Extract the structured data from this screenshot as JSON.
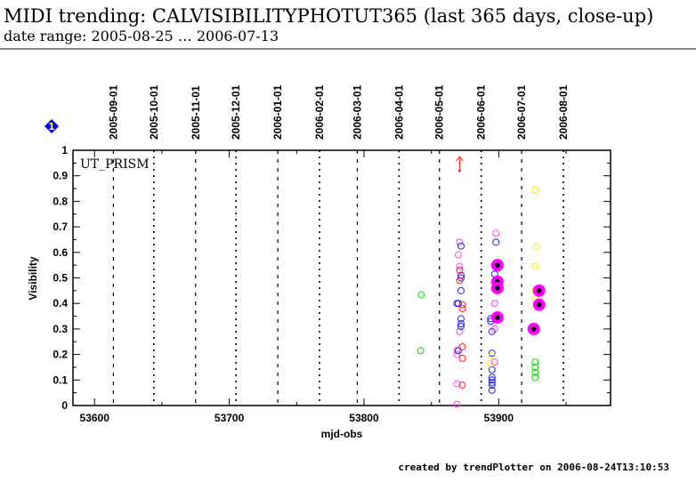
{
  "header": {
    "title": "MIDI trending: CALVISIBILITYPHOTUT365 (last 365 days, close-up)",
    "subtitle": "date range: 2005-08-25 … 2006-07-13"
  },
  "badge": {
    "label": "1",
    "color": "#0000ff"
  },
  "footer": "created by trendPlotter on 2006-08-24T13:10:53",
  "chart_data": {
    "type": "scatter",
    "title": "MIDI trending: CALVISIBILITYPHOTUT365 (last 365 days, close-up)",
    "annotation": "UT_PRISM",
    "xlabel": "mjd-obs",
    "ylabel": "Visibility",
    "xlim": [
      53584,
      53983
    ],
    "ylim": [
      0,
      1
    ],
    "xticks": [
      53600,
      53700,
      53800,
      53900
    ],
    "yticks": [
      0,
      0.1,
      0.2,
      0.3,
      0.4,
      0.5,
      0.6,
      0.7,
      0.8,
      0.9,
      1
    ],
    "ytick_labels": [
      "0",
      "0.1",
      "0.2",
      "0.3",
      "0.4",
      "0.5",
      "0.6",
      "0.7",
      "0.8",
      "0.9",
      "1"
    ],
    "date_markers": [
      {
        "label": "2005-09-01",
        "mjd": 53614
      },
      {
        "label": "2005-10-01",
        "mjd": 53644
      },
      {
        "label": "2005-11-01",
        "mjd": 53675
      },
      {
        "label": "2005-12-01",
        "mjd": 53705
      },
      {
        "label": "2006-01-01",
        "mjd": 53736
      },
      {
        "label": "2006-02-01",
        "mjd": 53767
      },
      {
        "label": "2006-03-01",
        "mjd": 53795
      },
      {
        "label": "2006-04-01",
        "mjd": 53826
      },
      {
        "label": "2006-05-01",
        "mjd": 53856
      },
      {
        "label": "2006-06-01",
        "mjd": 53887
      },
      {
        "label": "2006-07-01",
        "mjd": 53917
      },
      {
        "label": "2006-08-01",
        "mjd": 53948
      }
    ],
    "series": [
      {
        "name": "green",
        "color": "#00dd00",
        "points": [
          [
            53842.5,
            0.434
          ],
          [
            53842,
            0.215
          ],
          [
            53927,
            0.17
          ],
          [
            53927,
            0.15
          ],
          [
            53927,
            0.13
          ],
          [
            53927,
            0.11
          ]
        ]
      },
      {
        "name": "magenta",
        "color": "#ff44ff",
        "points": [
          [
            53871,
            0.64
          ],
          [
            53870,
            0.59
          ],
          [
            53871,
            0.545
          ],
          [
            53871,
            0.29
          ],
          [
            53869,
            0.215
          ],
          [
            53869,
            0.2
          ],
          [
            53869,
            0.085
          ],
          [
            53869,
            0.005
          ],
          [
            53898,
            0.675
          ],
          [
            53897,
            0.4
          ],
          [
            53897,
            0.3
          ],
          [
            53897,
            0.17
          ]
        ]
      },
      {
        "name": "blue",
        "color": "#2222ff",
        "points": [
          [
            53872,
            0.625
          ],
          [
            53872,
            0.51
          ],
          [
            53872,
            0.5
          ],
          [
            53872,
            0.45
          ],
          [
            53869,
            0.4
          ],
          [
            53870,
            0.4
          ],
          [
            53872,
            0.34
          ],
          [
            53872,
            0.32
          ],
          [
            53872,
            0.31
          ],
          [
            53870,
            0.215
          ],
          [
            53898,
            0.64
          ],
          [
            53897,
            0.515
          ],
          [
            53894,
            0.34
          ],
          [
            53894,
            0.33
          ],
          [
            53895,
            0.29
          ],
          [
            53895,
            0.205
          ],
          [
            53895,
            0.14
          ],
          [
            53895,
            0.11
          ],
          [
            53895,
            0.1
          ],
          [
            53895,
            0.09
          ],
          [
            53895,
            0.08
          ],
          [
            53895,
            0.06
          ]
        ]
      },
      {
        "name": "red",
        "color": "#ff2222",
        "points": [
          [
            53871,
            0.53
          ],
          [
            53871,
            0.49
          ],
          [
            53873,
            0.395
          ],
          [
            53873,
            0.38
          ],
          [
            53873,
            0.23
          ],
          [
            53873,
            0.185
          ],
          [
            53873,
            0.08
          ]
        ]
      },
      {
        "name": "yellow",
        "color": "#ffee00",
        "points": [
          [
            53927,
            0.845
          ],
          [
            53928,
            0.62
          ],
          [
            53927,
            0.545
          ],
          [
            53927,
            0.45
          ],
          [
            53927,
            0.42
          ],
          [
            53895,
            0.195
          ],
          [
            53894,
            0.165
          ]
        ]
      },
      {
        "name": "highlighted",
        "color": "#ff00ff",
        "points": [
          [
            53899,
            0.55
          ],
          [
            53899,
            0.485
          ],
          [
            53899,
            0.46
          ],
          [
            53899,
            0.345
          ],
          [
            53930,
            0.45
          ],
          [
            53930,
            0.395
          ],
          [
            53926,
            0.3
          ]
        ]
      }
    ],
    "upper_limit_arrow": {
      "color": "#ff2222",
      "mjd": 53871,
      "value": 0.92
    }
  }
}
